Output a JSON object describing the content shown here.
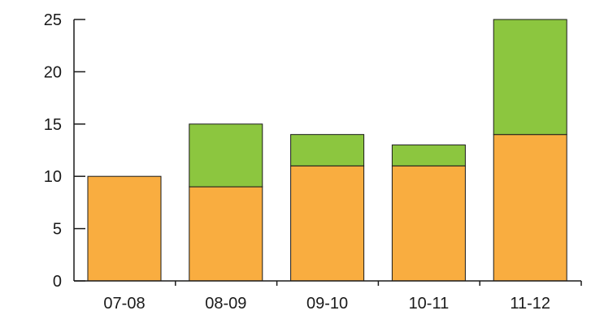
{
  "chart_data": {
    "type": "bar",
    "stacked": true,
    "title": "",
    "xlabel": "",
    "ylabel": "",
    "categories": [
      "07-08",
      "08-09",
      "09-10",
      "10-11",
      "11-12"
    ],
    "series": [
      {
        "color": "#f9ad40",
        "values": [
          10,
          9,
          11,
          11,
          14
        ]
      },
      {
        "color": "#8cc63f",
        "values": [
          0,
          6,
          3,
          2,
          11
        ]
      }
    ],
    "ylim": [
      0,
      25
    ],
    "yticks": [
      0,
      5,
      10,
      15,
      20,
      25
    ],
    "grid": false,
    "legend": "none"
  }
}
